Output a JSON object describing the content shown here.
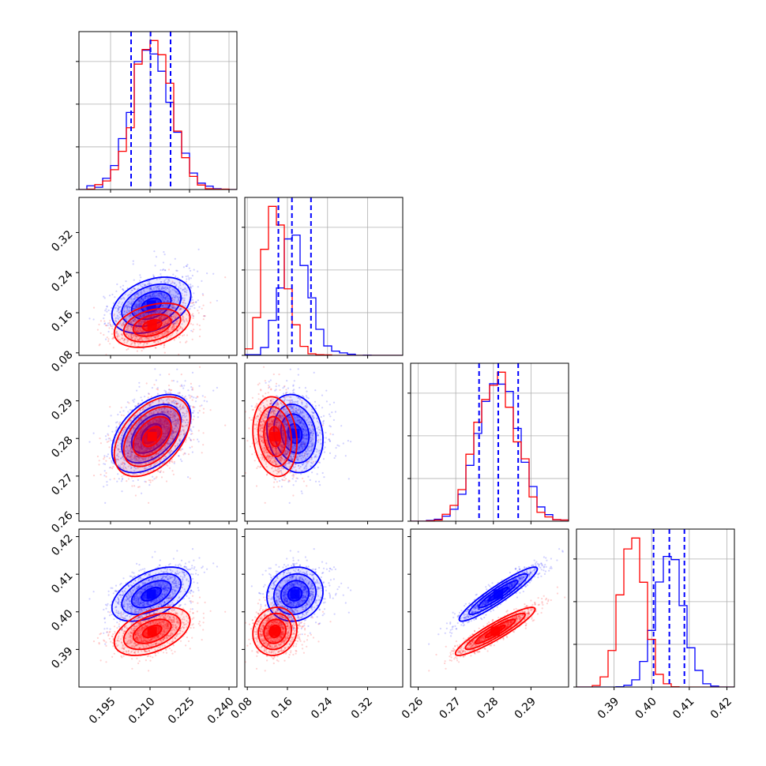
{
  "chart_data": {
    "type": "corner",
    "parameters": 4,
    "series": [
      {
        "name": "",
        "color": "#0000ff",
        "means": [
          0.2105,
          0.175,
          0.2813,
          0.4047
        ],
        "sigmas": [
          0.0075,
          0.028,
          0.0052,
          0.0036
        ],
        "quantiles": [
          [
            0.2028,
            0.2102,
            0.2178
          ],
          [
            0.142,
            0.169,
            0.207
          ],
          [
            0.2762,
            0.2813,
            0.2866
          ],
          [
            0.4005,
            0.4047,
            0.4087
          ]
        ]
      },
      {
        "name": "",
        "color": "#ff0000",
        "means": [
          0.2108,
          0.135,
          0.2805,
          0.3948
        ],
        "sigmas": [
          0.0072,
          0.022,
          0.0053,
          0.0032
        ],
        "quantiles": []
      }
    ],
    "correlations": {
      "blue": [
        [
          1,
          0.35,
          0.45,
          0.5
        ],
        [
          0.35,
          1,
          -0.15,
          0.1
        ],
        [
          0.45,
          -0.15,
          1,
          0.93
        ],
        [
          0.5,
          0.1,
          0.93,
          1
        ]
      ],
      "red": [
        [
          1,
          0.35,
          0.45,
          0.45
        ],
        [
          0.35,
          1,
          -0.15,
          0.1
        ],
        [
          0.45,
          -0.15,
          1,
          0.92
        ],
        [
          0.45,
          0.1,
          0.92,
          1
        ]
      ]
    },
    "ranges": [
      [
        0.183,
        0.243
      ],
      [
        0.075,
        0.39
      ],
      [
        0.258,
        0.3
      ],
      [
        0.38,
        0.422
      ]
    ],
    "ticks": [
      [
        "0.195",
        "0.210",
        "0.225",
        "0.240"
      ],
      [
        "0.08",
        "0.16",
        "0.24",
        "0.32"
      ],
      [
        "0.26",
        "0.27",
        "0.28",
        "0.29"
      ],
      [
        "0.39",
        "0.40",
        "0.41",
        "0.42"
      ]
    ],
    "tick_values": [
      [
        0.195,
        0.21,
        0.225,
        0.24
      ],
      [
        0.08,
        0.16,
        0.24,
        0.32
      ],
      [
        0.26,
        0.27,
        0.28,
        0.29
      ],
      [
        0.39,
        0.4,
        0.41,
        0.42
      ]
    ],
    "histogram_bins": 20,
    "grid": true,
    "quantile_line_style": "dashed"
  }
}
